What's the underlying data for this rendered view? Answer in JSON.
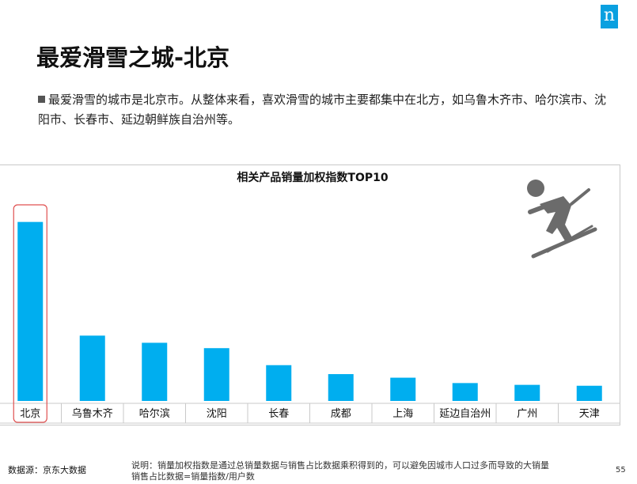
{
  "logo": {
    "text": "n"
  },
  "title": "最爱滑雪之城-北京",
  "summary": "最爱滑雪的城市是北京市。从整体来看，喜欢滑雪的城市主要都集中在北方，如乌鲁木齐市、哈尔滨市、沈阳市、长春市、延边朝鲜族自治州等。",
  "colors": {
    "bar": "#00aeef",
    "highlight": "#e05050",
    "brand": "#0aa0e0"
  },
  "icons": {
    "skier": "skier-icon"
  },
  "chart_data": {
    "type": "bar",
    "title": "相关产品销量加权指数TOP10",
    "categories": [
      "北京",
      "乌鲁木齐",
      "哈尔滨",
      "沈阳",
      "长春",
      "成都",
      "上海",
      "延边自治州",
      "广州",
      "天津"
    ],
    "values": [
      100,
      36.5,
      32.5,
      29.5,
      20.0,
      15.0,
      13.0,
      10.0,
      9.0,
      8.5
    ],
    "ylim": [
      0,
      110
    ],
    "highlight": "北京",
    "grid": false
  },
  "footer": {
    "source": "数据源：京东大数据",
    "note_line1": "说明：销量加权指数是通过总销量数据与销售占比数据乘积得到的，可以避免因城市人口过多而导致的大销量",
    "note_line2": "销售占比数据=销量指数/用户数",
    "page": "55"
  }
}
